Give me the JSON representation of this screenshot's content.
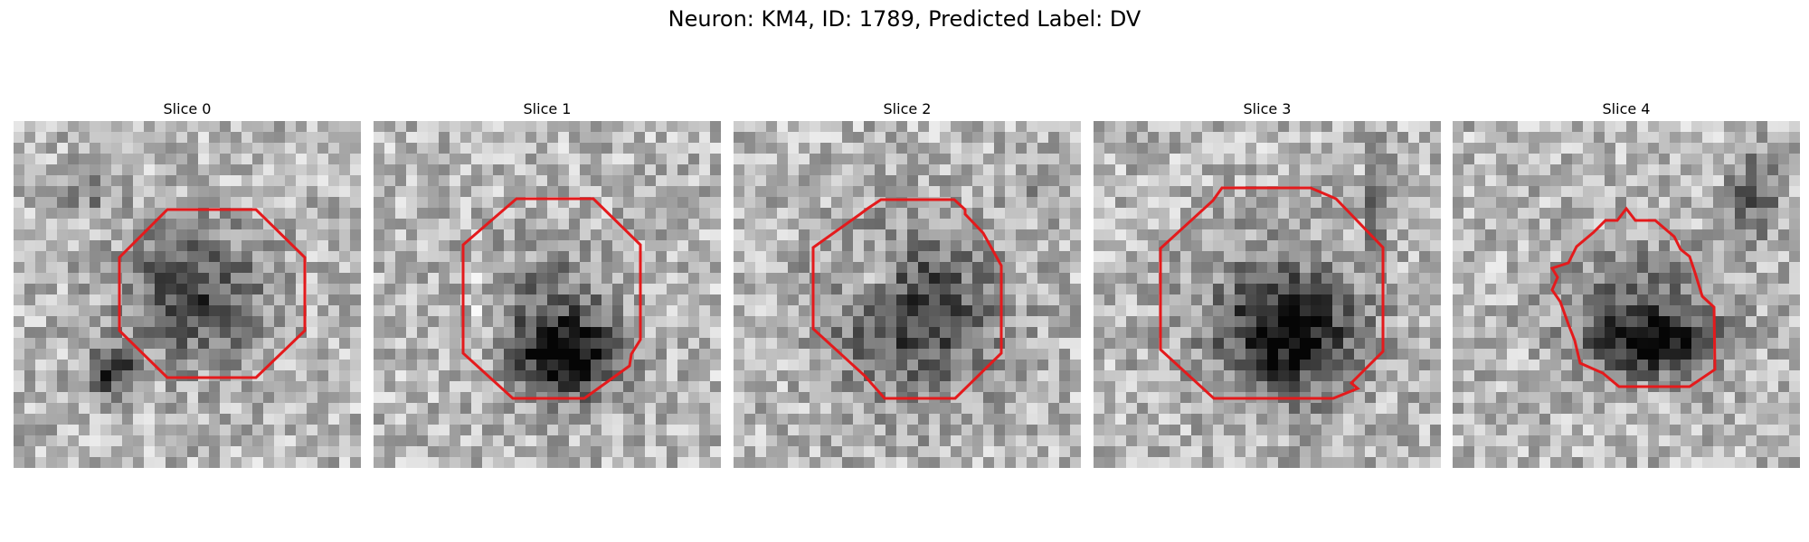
{
  "figure": {
    "title": "Neuron: KM4, ID: 1789, Predicted Label: DV"
  },
  "slices": [
    {
      "title": "Slice 0"
    },
    {
      "title": "Slice 1"
    },
    {
      "title": "Slice 2"
    },
    {
      "title": "Slice 3"
    },
    {
      "title": "Slice 4"
    }
  ],
  "colors": {
    "contour": "#e41a1c",
    "background": "#ffffff",
    "text": "#000000"
  }
}
